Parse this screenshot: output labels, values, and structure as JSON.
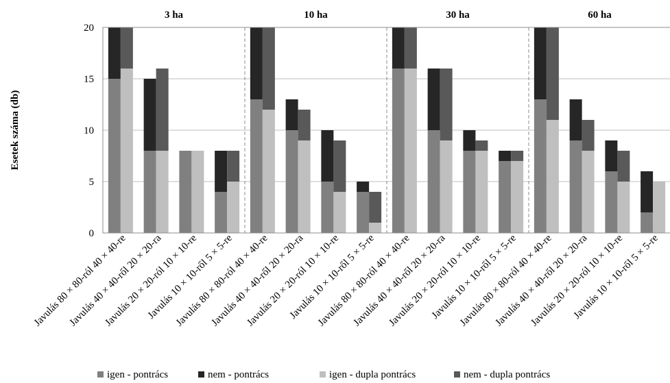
{
  "chart_data": {
    "type": "bar",
    "ylabel": "Esetek száma (db)",
    "ylim": [
      0,
      20
    ],
    "yticks": [
      0,
      5,
      10,
      15,
      20
    ],
    "grid": true,
    "legend_placement": "bottom",
    "groups": [
      "3 ha",
      "10 ha",
      "30 ha",
      "60 ha"
    ],
    "categories": [
      "Javulás 80 × 80-ról  40 × 40-re",
      "Javulás 40 × 40-ről 20 × 20-ra",
      "Javulás 20 × 20-ról 10 × 10-re",
      "Javulás 10 × 10-ről 5 × 5-re",
      "Javulás 80 × 80-ról  40 × 40-re",
      "Javulás 40 × 40-ről 20 × 20-ra",
      "Javulás 20 × 20-ról 10 × 10-re",
      "Javulás 10 × 10-ről 5 × 5-re",
      "Javulás 80 × 80-ról  40 × 40-re",
      "Javulás 40 × 40-ről 20 × 20-ra",
      "Javulás 20 × 20-ról 10 × 10-re",
      "Javulás 10 × 10-ről 5 × 5-re",
      "Javulás 80 × 80-ról  40 × 40-re",
      "Javulás 40 × 40-ről 20 × 20-ra",
      "Javulás 20 × 20-ról 10 × 10-re",
      "Javulás 10 × 10-ről 5 × 5-re"
    ],
    "series": [
      {
        "name": "igen - pontrács",
        "color": "#808080",
        "stack": "pontrács",
        "values": [
          15,
          8,
          8,
          4,
          13,
          10,
          5,
          4,
          16,
          10,
          8,
          7,
          13,
          9,
          6,
          2
        ]
      },
      {
        "name": "nem - pontrács",
        "color": "#262626",
        "stack": "pontrács",
        "values": [
          5,
          7,
          0,
          4,
          7,
          3,
          5,
          1,
          4,
          6,
          2,
          1,
          7,
          4,
          3,
          4
        ]
      },
      {
        "name": "igen - dupla pontrács",
        "color": "#bfbfbf",
        "stack": "dupla pontrács",
        "values": [
          16,
          8,
          8,
          5,
          12,
          9,
          4,
          1,
          16,
          9,
          8,
          7,
          11,
          8,
          5,
          5
        ]
      },
      {
        "name": "nem - dupla pontrács",
        "color": "#595959",
        "stack": "dupla pontrács",
        "values": [
          4,
          8,
          0,
          3,
          8,
          3,
          5,
          3,
          4,
          7,
          1,
          1,
          9,
          3,
          3,
          0
        ]
      }
    ]
  }
}
